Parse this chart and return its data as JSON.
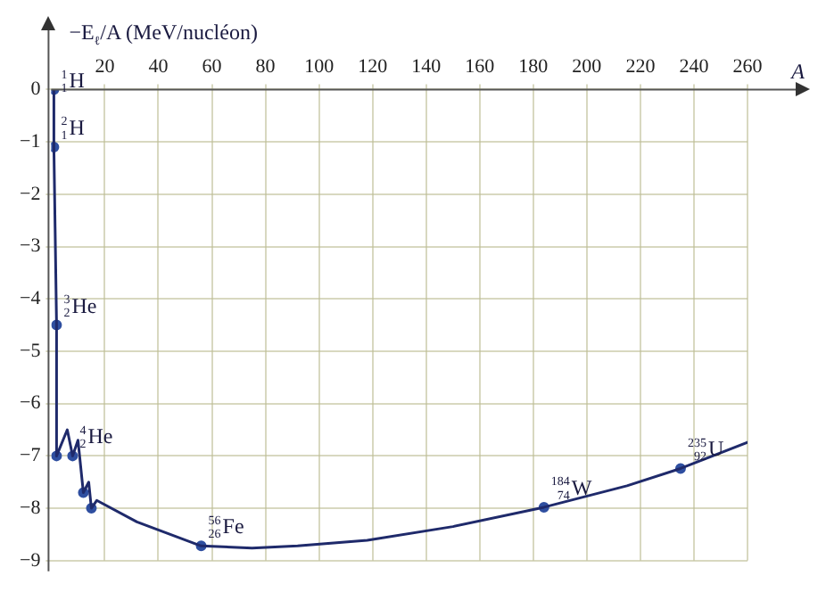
{
  "chart_data": {
    "type": "line",
    "ylabel": "−E$_{ℓ}$/A (MeV/nucléon)",
    "xlabel": "A",
    "xlim": [
      0,
      260
    ],
    "ylim": [
      -9,
      0
    ],
    "xticks": [
      20,
      40,
      60,
      80,
      100,
      120,
      140,
      160,
      180,
      200,
      220,
      240,
      260
    ],
    "yticks": [
      -9,
      -8,
      -7,
      -6,
      -5,
      -4,
      -3,
      -2,
      -1,
      0
    ],
    "grid": true,
    "legend": false,
    "series": [
      {
        "color": "#1f2a6b",
        "marker": "none",
        "x": [
          1,
          1,
          2,
          2,
          6,
          8,
          10,
          12,
          14,
          15,
          17,
          32,
          56,
          75,
          92,
          118,
          150,
          184,
          215,
          235,
          260
        ],
        "values": [
          0,
          -1.1,
          -4.5,
          -7,
          -6.5,
          -7,
          -6.7,
          -7.7,
          -7.5,
          -8,
          -7.85,
          -8.26,
          -8.72,
          -8.76,
          -8.72,
          -8.61,
          -8.35,
          -7.98,
          -7.57,
          -7.24,
          -6.74
        ]
      },
      {
        "type": "scatter",
        "color": "#2f4fa0",
        "marker": "circle",
        "x": [
          1,
          1,
          2,
          2,
          8,
          12,
          15,
          56,
          184,
          235
        ],
        "values": [
          0,
          -1.1,
          -4.5,
          -7,
          -7,
          -7.7,
          -8,
          -8.72,
          -7.98,
          -7.24
        ]
      }
    ],
    "annotations": [
      {
        "text": "$^{1}$$_{1}$H",
        "x": 1,
        "y": 0
      },
      {
        "text": "$^{2}$$_{1}$H",
        "x": 1,
        "y": -1.1
      },
      {
        "text": "$^{3}$$_{2}$He",
        "x": 2,
        "y": -4.5
      },
      {
        "text": "$^{4}$$_{2}$He",
        "x": 8,
        "y": -7
      },
      {
        "text": "$^{56}$$_{26}$Fe",
        "x": 56,
        "y": -8.72
      },
      {
        "text": "$^{184}$$_{74}$W",
        "x": 184,
        "y": -7.98
      },
      {
        "text": "$^{235}$$_{92}$U",
        "x": 235,
        "y": -7.24
      }
    ]
  }
}
